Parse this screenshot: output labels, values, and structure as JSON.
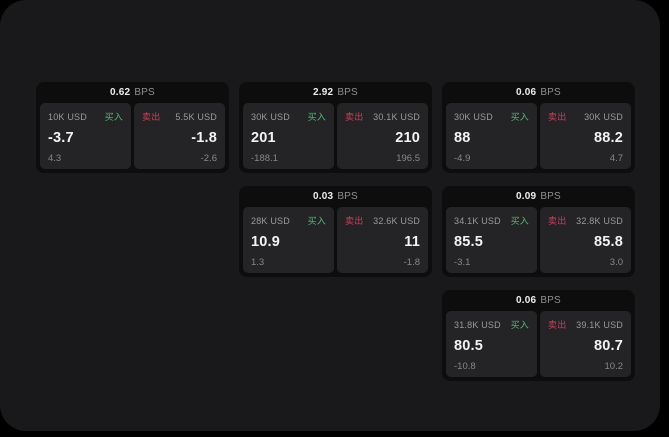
{
  "labels": {
    "buy": "买入",
    "sell": "卖出",
    "bps_unit": "BPS"
  },
  "colors": {
    "page_bg": "#000000",
    "panel_bg": "#19191b",
    "card_bg": "#0d0d0e",
    "tile_bg": "#242426",
    "buy_green": "#53b96f",
    "sell_red": "#c83e5c"
  },
  "cards": [
    {
      "col": 1,
      "row": 1,
      "bps": "0.62",
      "buy": {
        "amount": "10K USD",
        "price": "-3.7",
        "sub": "4.3"
      },
      "sell": {
        "amount": "5.5K USD",
        "price": "-1.8",
        "sub": "-2.6"
      }
    },
    {
      "col": 2,
      "row": 1,
      "bps": "2.92",
      "buy": {
        "amount": "30K USD",
        "price": "201",
        "sub": "-188.1"
      },
      "sell": {
        "amount": "30.1K USD",
        "price": "210",
        "sub": "196.5"
      }
    },
    {
      "col": 3,
      "row": 1,
      "bps": "0.06",
      "buy": {
        "amount": "30K USD",
        "price": "88",
        "sub": "-4.9"
      },
      "sell": {
        "amount": "30K USD",
        "price": "88.2",
        "sub": "4.7"
      }
    },
    {
      "col": 2,
      "row": 2,
      "bps": "0.03",
      "buy": {
        "amount": "28K USD",
        "price": "10.9",
        "sub": "1.3"
      },
      "sell": {
        "amount": "32.6K USD",
        "price": "11",
        "sub": "-1.8"
      }
    },
    {
      "col": 3,
      "row": 2,
      "bps": "0.09",
      "buy": {
        "amount": "34.1K USD",
        "price": "85.5",
        "sub": "-3.1"
      },
      "sell": {
        "amount": "32.8K USD",
        "price": "85.8",
        "sub": "3.0"
      }
    },
    {
      "col": 3,
      "row": 3,
      "bps": "0.06",
      "buy": {
        "amount": "31.8K USD",
        "price": "80.5",
        "sub": "-10.8"
      },
      "sell": {
        "amount": "39.1K USD",
        "price": "80.7",
        "sub": "10.2"
      }
    }
  ]
}
